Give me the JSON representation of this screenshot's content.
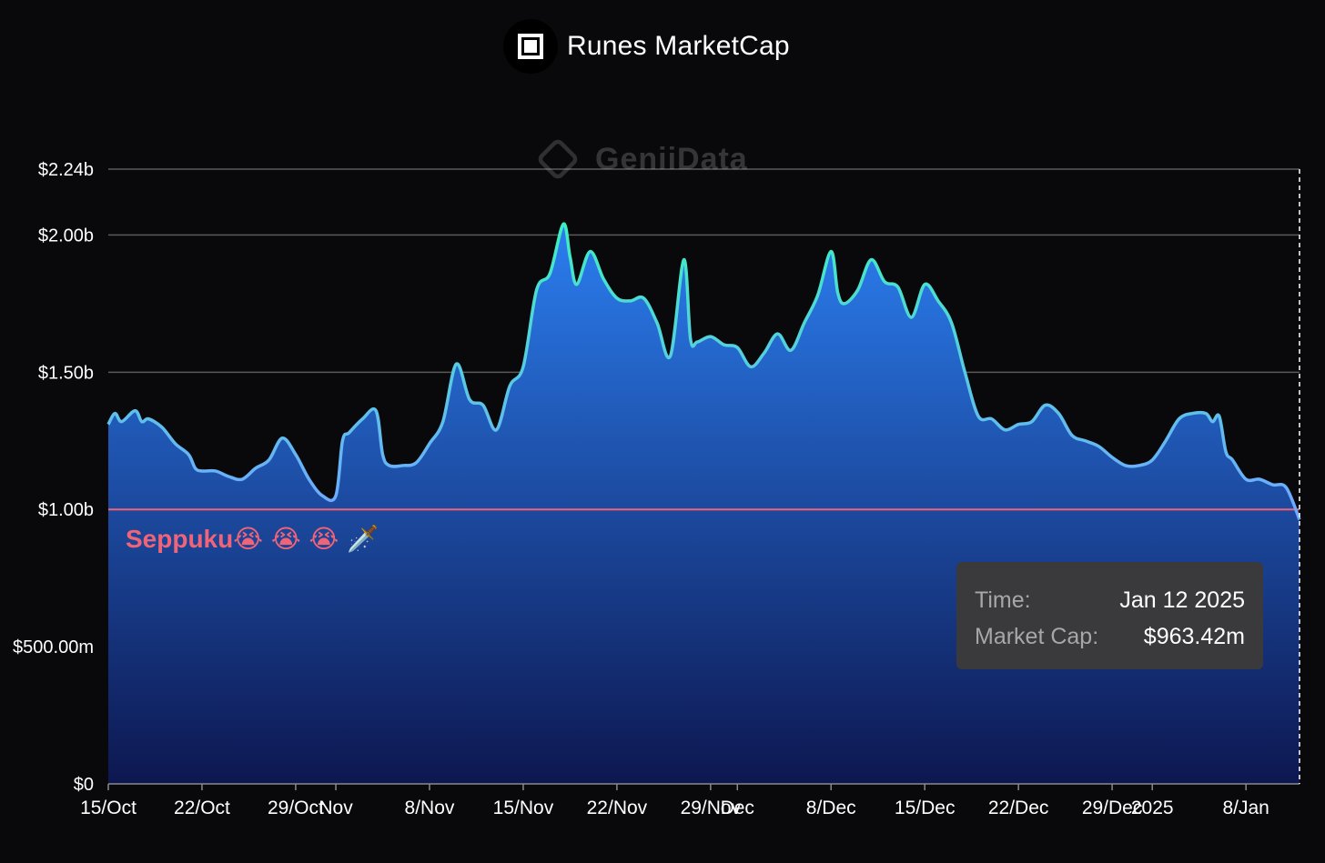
{
  "header": {
    "title": "Runes MarketCap",
    "logo_icon": "square-logo-icon"
  },
  "watermark": {
    "text": "GeniiData",
    "icon": "geniidata-logo-icon"
  },
  "annotation": {
    "text": "Seppuku",
    "emoji": "😭 😭 😭 🗡️",
    "color": "#f0647a"
  },
  "tooltip": {
    "time_label": "Time:",
    "time_value": "Jan 12 2025",
    "cap_label": "Market Cap:",
    "cap_value": "$963.42m"
  },
  "colors": {
    "background": "#09090b",
    "fill_top": "#2b7ef0",
    "fill_bottom": "#0d1750",
    "line_high": "#3ef0c0",
    "line_low": "#6fa8ff",
    "reference_line": "#f0647a",
    "grid": "#5a5a5a"
  },
  "chart_data": {
    "type": "area",
    "title": "Runes MarketCap",
    "x_start": "2024-10-15",
    "x_end": "2025-01-12",
    "ylim": [
      0,
      2.24
    ],
    "y_unit": "billions USD",
    "yticks": [
      {
        "value": 0,
        "label": "$0"
      },
      {
        "value": 0.5,
        "label": "$500.00m"
      },
      {
        "value": 1.0,
        "label": "$1.00b"
      },
      {
        "value": 1.5,
        "label": "$1.50b"
      },
      {
        "value": 2.0,
        "label": "$2.00b"
      },
      {
        "value": 2.24,
        "label": "$2.24b"
      }
    ],
    "xticks": [
      {
        "date": "2024-10-15",
        "label": "15/Oct"
      },
      {
        "date": "2024-10-22",
        "label": "22/Oct"
      },
      {
        "date": "2024-10-29",
        "label": "29/Oct"
      },
      {
        "date": "2024-11-01",
        "label": "Nov"
      },
      {
        "date": "2024-11-08",
        "label": "8/Nov"
      },
      {
        "date": "2024-11-15",
        "label": "15/Nov"
      },
      {
        "date": "2024-11-22",
        "label": "22/Nov"
      },
      {
        "date": "2024-11-29",
        "label": "29/Nov"
      },
      {
        "date": "2024-12-01",
        "label": "Dec"
      },
      {
        "date": "2024-12-08",
        "label": "8/Dec"
      },
      {
        "date": "2024-12-15",
        "label": "15/Dec"
      },
      {
        "date": "2024-12-22",
        "label": "22/Dec"
      },
      {
        "date": "2024-12-29",
        "label": "29/Dec"
      },
      {
        "date": "2025-01-01",
        "label": "2025"
      },
      {
        "date": "2025-01-08",
        "label": "8/Jan"
      }
    ],
    "reference_line": 1.0,
    "grid": true,
    "series": [
      {
        "values": [
          [
            "2024-10-15",
            1.31
          ],
          [
            "2024-10-15T12",
            1.35
          ],
          [
            "2024-10-16",
            1.32
          ],
          [
            "2024-10-17",
            1.36
          ],
          [
            "2024-10-17T12",
            1.32
          ],
          [
            "2024-10-18",
            1.33
          ],
          [
            "2024-10-19",
            1.3
          ],
          [
            "2024-10-20",
            1.24
          ],
          [
            "2024-10-21",
            1.2
          ],
          [
            "2024-10-21T12",
            1.15
          ],
          [
            "2024-10-22",
            1.14
          ],
          [
            "2024-10-23",
            1.14
          ],
          [
            "2024-10-24",
            1.12
          ],
          [
            "2024-10-25",
            1.11
          ],
          [
            "2024-10-26",
            1.15
          ],
          [
            "2024-10-27",
            1.18
          ],
          [
            "2024-10-28",
            1.26
          ],
          [
            "2024-10-29",
            1.2
          ],
          [
            "2024-10-30",
            1.11
          ],
          [
            "2024-10-31",
            1.05
          ],
          [
            "2024-11-01",
            1.05
          ],
          [
            "2024-11-01T12",
            1.25
          ],
          [
            "2024-11-02",
            1.28
          ],
          [
            "2024-11-03",
            1.33
          ],
          [
            "2024-11-04",
            1.36
          ],
          [
            "2024-11-04T12",
            1.2
          ],
          [
            "2024-11-05",
            1.16
          ],
          [
            "2024-11-06",
            1.16
          ],
          [
            "2024-11-07",
            1.17
          ],
          [
            "2024-11-08",
            1.24
          ],
          [
            "2024-11-09",
            1.32
          ],
          [
            "2024-11-10",
            1.53
          ],
          [
            "2024-11-11",
            1.4
          ],
          [
            "2024-11-12",
            1.38
          ],
          [
            "2024-11-13",
            1.29
          ],
          [
            "2024-11-14",
            1.45
          ],
          [
            "2024-11-15",
            1.52
          ],
          [
            "2024-11-16",
            1.8
          ],
          [
            "2024-11-17",
            1.86
          ],
          [
            "2024-11-18",
            2.04
          ],
          [
            "2024-11-18T12",
            1.92
          ],
          [
            "2024-11-19",
            1.82
          ],
          [
            "2024-11-20",
            1.94
          ],
          [
            "2024-11-21",
            1.84
          ],
          [
            "2024-11-22",
            1.77
          ],
          [
            "2024-11-23",
            1.76
          ],
          [
            "2024-11-24",
            1.77
          ],
          [
            "2024-11-25",
            1.68
          ],
          [
            "2024-11-26",
            1.56
          ],
          [
            "2024-11-27",
            1.91
          ],
          [
            "2024-11-27T12",
            1.62
          ],
          [
            "2024-11-28",
            1.61
          ],
          [
            "2024-11-29",
            1.63
          ],
          [
            "2024-11-30",
            1.6
          ],
          [
            "2024-12-01",
            1.59
          ],
          [
            "2024-12-02",
            1.52
          ],
          [
            "2024-12-03",
            1.57
          ],
          [
            "2024-12-04",
            1.64
          ],
          [
            "2024-12-05",
            1.58
          ],
          [
            "2024-12-06",
            1.68
          ],
          [
            "2024-12-07",
            1.78
          ],
          [
            "2024-12-08",
            1.94
          ],
          [
            "2024-12-08T12",
            1.79
          ],
          [
            "2024-12-09",
            1.75
          ],
          [
            "2024-12-10",
            1.8
          ],
          [
            "2024-12-11",
            1.91
          ],
          [
            "2024-12-12",
            1.83
          ],
          [
            "2024-12-13",
            1.81
          ],
          [
            "2024-12-14",
            1.7
          ],
          [
            "2024-12-15",
            1.82
          ],
          [
            "2024-12-16",
            1.76
          ],
          [
            "2024-12-17",
            1.68
          ],
          [
            "2024-12-18",
            1.5
          ],
          [
            "2024-12-19",
            1.34
          ],
          [
            "2024-12-20",
            1.33
          ],
          [
            "2024-12-21",
            1.29
          ],
          [
            "2024-12-22",
            1.31
          ],
          [
            "2024-12-23",
            1.32
          ],
          [
            "2024-12-24",
            1.38
          ],
          [
            "2024-12-25",
            1.35
          ],
          [
            "2024-12-26",
            1.27
          ],
          [
            "2024-12-27",
            1.25
          ],
          [
            "2024-12-28",
            1.23
          ],
          [
            "2024-12-29",
            1.19
          ],
          [
            "2024-12-30",
            1.16
          ],
          [
            "2024-12-31",
            1.16
          ],
          [
            "2025-01-01",
            1.18
          ],
          [
            "2025-01-02",
            1.25
          ],
          [
            "2025-01-03",
            1.33
          ],
          [
            "2025-01-04",
            1.35
          ],
          [
            "2025-01-05",
            1.35
          ],
          [
            "2025-01-05T12",
            1.32
          ],
          [
            "2025-01-06",
            1.34
          ],
          [
            "2025-01-06T12",
            1.21
          ],
          [
            "2025-01-07",
            1.18
          ],
          [
            "2025-01-08",
            1.11
          ],
          [
            "2025-01-09",
            1.11
          ],
          [
            "2025-01-10",
            1.09
          ],
          [
            "2025-01-11",
            1.08
          ],
          [
            "2025-01-12",
            0.963
          ]
        ]
      }
    ]
  }
}
